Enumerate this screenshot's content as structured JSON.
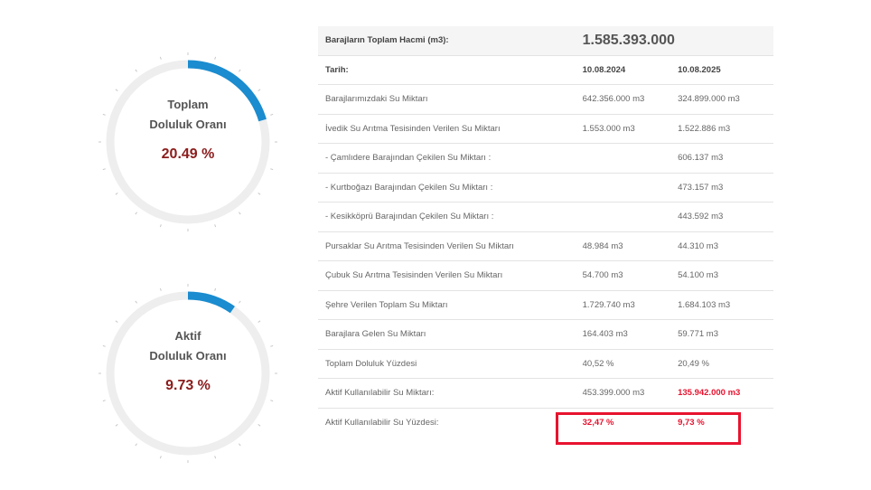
{
  "gauges": [
    {
      "title_line1": "Toplam",
      "title_line2": "Doluluk Oranı",
      "value_text": "20.49 %",
      "percent": 20.49,
      "color": "#1a8ccf"
    },
    {
      "title_line1": "Aktif",
      "title_line2": "Doluluk Oranı",
      "value_text": "9.73 %",
      "percent": 9.73,
      "color": "#1a8ccf"
    }
  ],
  "table": {
    "total_label": "Barajların Toplam Hacmi (m3):",
    "total_value": "1.585.393.000",
    "date_label": "Tarih:",
    "date1": "10.08.2024",
    "date2": "10.08.2025",
    "rows": [
      {
        "label": "Barajlarımızdaki Su Miktarı",
        "v1": "642.356.000 m3",
        "v2": "324.899.000 m3"
      },
      {
        "label": "İvedik Su Arıtma Tesisinden Verilen Su Miktarı",
        "v1": "1.553.000 m3",
        "v2": "1.522.886 m3"
      },
      {
        "label": "- Çamlıdere Barajından Çekilen Su Miktarı :",
        "v1": "",
        "v2": "606.137 m3"
      },
      {
        "label": "- Kurtboğazı Barajından Çekilen Su Miktarı :",
        "v1": "",
        "v2": "473.157 m3"
      },
      {
        "label": "- Kesikköprü Barajından Çekilen Su Miktarı :",
        "v1": "",
        "v2": "443.592 m3"
      },
      {
        "label": "Pursaklar Su Arıtma Tesisinden Verilen Su Miktarı",
        "v1": "48.984 m3",
        "v2": "44.310 m3"
      },
      {
        "label": "Çubuk Su Arıtma Tesisinden Verilen Su Miktarı",
        "v1": "54.700 m3",
        "v2": "54.100 m3"
      },
      {
        "label": "Şehre Verilen Toplam Su Miktarı",
        "v1": "1.729.740 m3",
        "v2": "1.684.103 m3"
      },
      {
        "label": "Barajlara Gelen Su Miktarı",
        "v1": "164.403 m3",
        "v2": "59.771 m3"
      },
      {
        "label": "Toplam Doluluk Yüzdesi",
        "v1": "40,52 %",
        "v2": "20,49 %"
      },
      {
        "label": "Aktif Kullanılabilir Su Miktarı:",
        "v1": "453.399.000 m3",
        "v2": "135.942.000 m3"
      },
      {
        "label": "Aktif Kullanılabilir Su Yüzdesi:",
        "v1": "32,47 %",
        "v2": "9,73 %"
      }
    ]
  },
  "colors": {
    "accent": "#1a8ccf",
    "track": "#eeeeee",
    "value": "#8b1c1c",
    "highlight": "#e8132f"
  }
}
